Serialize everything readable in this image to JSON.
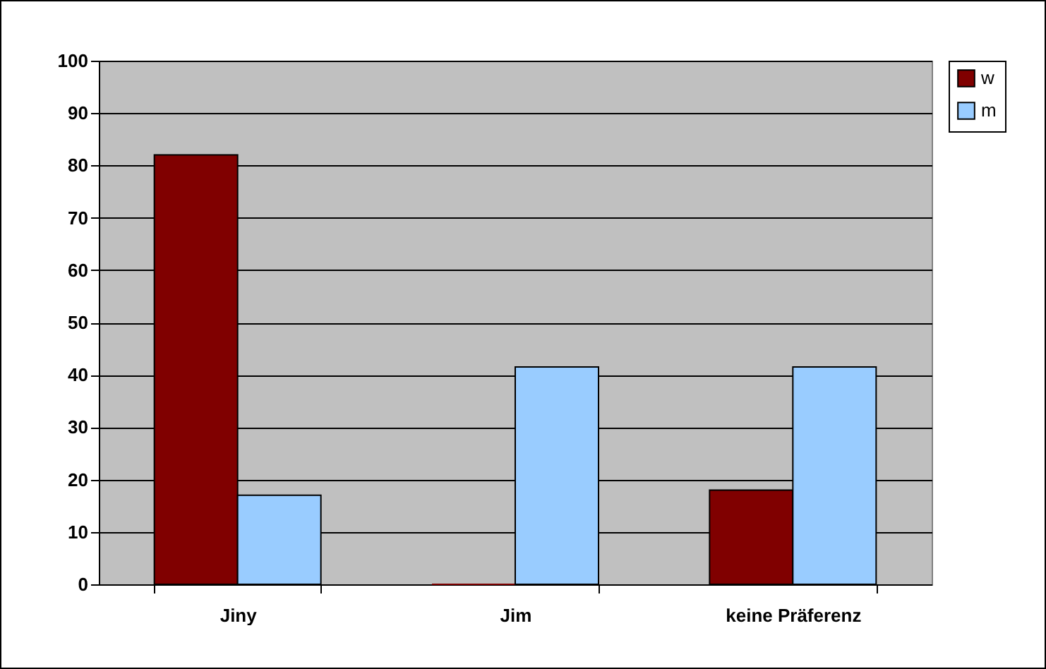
{
  "chart_data": {
    "type": "bar",
    "categories": [
      "Jiny",
      "Jim",
      "keine Präferenz"
    ],
    "series": [
      {
        "name": "w",
        "color": "#800000",
        "values": [
          82,
          0,
          18
        ]
      },
      {
        "name": "m",
        "color": "#99ccff",
        "values": [
          17,
          41.5,
          41.5
        ]
      }
    ],
    "ylim": [
      0,
      100
    ],
    "yticks": [
      0,
      10,
      20,
      30,
      40,
      50,
      60,
      70,
      80,
      90,
      100
    ],
    "grid": "y",
    "legend": "right"
  }
}
